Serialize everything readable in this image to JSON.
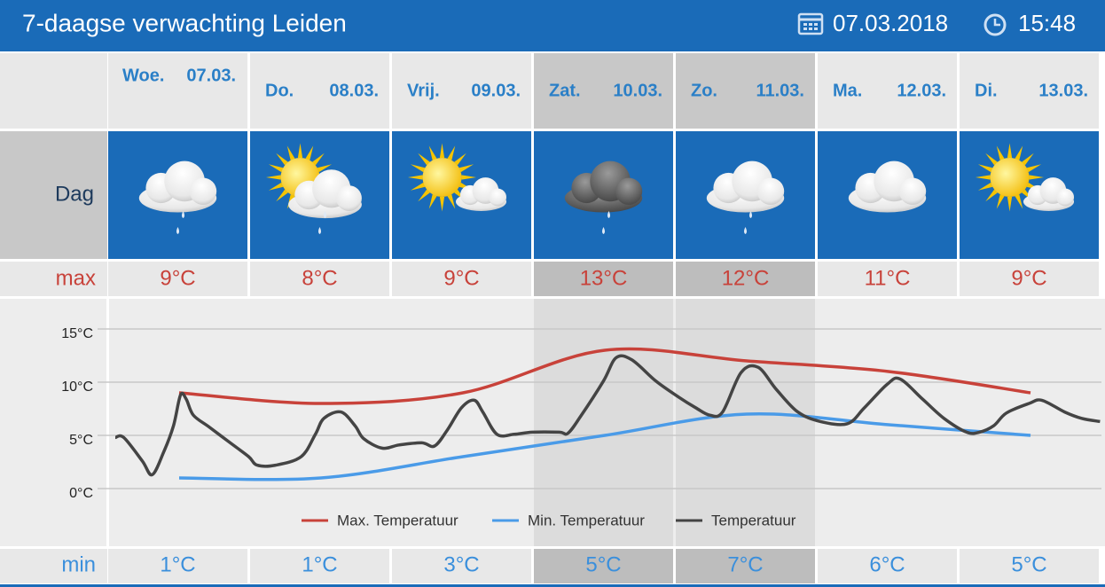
{
  "header": {
    "title": "7-daagse verwachting Leiden",
    "date": "07.03.2018",
    "time": "15:48"
  },
  "row_labels": {
    "day": "Dag",
    "max": "max",
    "min": "min"
  },
  "days": [
    {
      "name": "Woe.",
      "date": "07.03."
    },
    {
      "name": "Do.",
      "date": "08.03."
    },
    {
      "name": "Vrij.",
      "date": "09.03."
    },
    {
      "name": "Zat.",
      "date": "10.03."
    },
    {
      "name": "Zo.",
      "date": "11.03."
    },
    {
      "name": "Ma.",
      "date": "12.03."
    },
    {
      "name": "Di.",
      "date": "13.03."
    }
  ],
  "chart_data": {
    "type": "line",
    "xlim": [
      0,
      7
    ],
    "ylim": [
      0,
      15
    ],
    "yticks": [
      {
        "value": 0,
        "label": "0°C"
      },
      {
        "value": 5,
        "label": "5°C"
      },
      {
        "value": 10,
        "label": "10°C"
      },
      {
        "value": 15,
        "label": "15°C"
      }
    ],
    "grid": true,
    "series": [
      {
        "name": "Max. Temperatuur",
        "color": "#c8423a",
        "x": [
          0.5,
          1.5,
          2.5,
          3.5,
          4.5,
          5.5,
          6.5
        ],
        "values": [
          9,
          8,
          9,
          13,
          12,
          11,
          9
        ],
        "value_labels": [
          "9°C",
          "8°C",
          "9°C",
          "13°C",
          "12°C",
          "11°C",
          "9°C"
        ]
      },
      {
        "name": "Min. Temperatuur",
        "color": "#4a9be8",
        "x": [
          0.5,
          1.5,
          2.5,
          3.5,
          4.5,
          5.5,
          6.5
        ],
        "values": [
          1,
          1,
          3,
          5,
          7,
          6,
          5
        ],
        "value_labels": [
          "1°C",
          "1°C",
          "3°C",
          "5°C",
          "7°C",
          "6°C",
          "5°C"
        ]
      },
      {
        "name": "Temperatuur",
        "color": "#444444",
        "x": [
          0.05,
          0.11,
          0.24,
          0.31,
          0.39,
          0.46,
          0.51,
          0.55,
          0.6,
          0.71,
          0.86,
          0.99,
          1.05,
          1.18,
          1.36,
          1.46,
          1.52,
          1.64,
          1.74,
          1.8,
          1.93,
          2.05,
          2.21,
          2.3,
          2.39,
          2.49,
          2.58,
          2.64,
          2.74,
          2.86,
          2.99,
          3.18,
          3.24,
          3.33,
          3.49,
          3.58,
          3.69,
          3.86,
          4.02,
          4.14,
          4.24,
          4.33,
          4.46,
          4.58,
          4.71,
          4.86,
          5.02,
          5.21,
          5.33,
          5.49,
          5.58,
          5.74,
          5.89,
          6.05,
          6.14,
          6.24,
          6.33,
          6.49,
          6.58,
          6.74,
          6.86,
          6.99
        ],
        "values": [
          4.8,
          4.8,
          2.6,
          1.3,
          3.4,
          5.9,
          8.8,
          8.4,
          6.9,
          5.8,
          4.3,
          3.0,
          2.2,
          2.2,
          3.0,
          5.1,
          6.6,
          7.2,
          5.9,
          4.7,
          3.8,
          4.1,
          4.3,
          4.0,
          5.5,
          7.6,
          8.3,
          7.2,
          5.1,
          5.1,
          5.3,
          5.3,
          5.2,
          6.8,
          10.1,
          12.3,
          12.1,
          10.1,
          8.6,
          7.6,
          6.9,
          7.2,
          10.9,
          11.4,
          9.3,
          7.2,
          6.3,
          6.1,
          7.6,
          9.8,
          10.3,
          8.4,
          6.6,
          5.3,
          5.3,
          5.9,
          7.1,
          8.0,
          8.3,
          7.2,
          6.6,
          6.3
        ]
      }
    ]
  }
}
